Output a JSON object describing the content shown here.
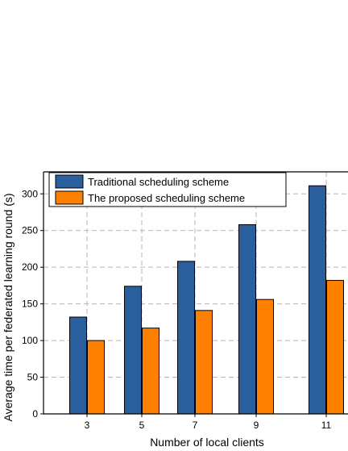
{
  "chart_data": {
    "type": "bar",
    "title": "",
    "xlabel": "Number of local clients",
    "ylabel": "Average time per federated learning round (s)",
    "categories": [
      "3",
      "5",
      "7",
      "9",
      "11"
    ],
    "ylim": [
      0,
      330
    ],
    "yticks": [
      0,
      50,
      100,
      150,
      200,
      250,
      300
    ],
    "grid": true,
    "legend_position": "top-left",
    "series": [
      {
        "name": "Traditional scheduling scheme",
        "color": "#2b5e9c",
        "values": [
          132,
          174,
          208,
          258,
          311
        ]
      },
      {
        "name": "The proposed scheduling  scheme",
        "color": "#ff8000",
        "values": [
          100,
          117,
          141,
          156,
          182
        ]
      }
    ]
  }
}
